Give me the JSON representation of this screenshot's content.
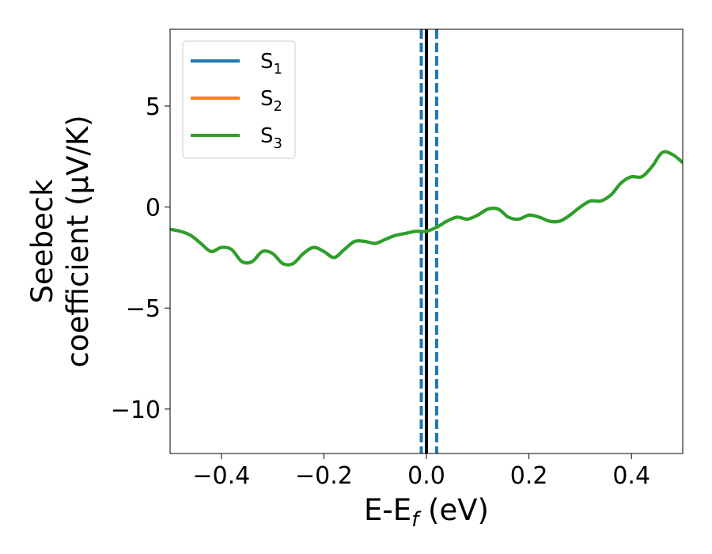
{
  "chart_data": {
    "type": "line",
    "xlabel": {
      "main": "E-E",
      "sub": "f",
      "unit": " (eV)"
    },
    "ylabel": {
      "line1": "Seebeck",
      "line2": "coefficient  (μV/K)"
    },
    "xlim": [
      -0.5,
      0.5
    ],
    "ylim": [
      -12.2,
      8.8
    ],
    "xticks": [
      -0.4,
      -0.2,
      0.0,
      0.2,
      0.4
    ],
    "xtick_labels": [
      "−0.4",
      "−0.2",
      "0.0",
      "0.2",
      "0.4"
    ],
    "yticks": [
      5,
      0,
      -5,
      -10
    ],
    "ytick_labels": [
      "5",
      "0",
      "−5",
      "−10"
    ],
    "legend_position": "top-left",
    "vertical_lines": [
      {
        "x": 0.0,
        "color": "#000000",
        "style": "solid"
      },
      {
        "x": -0.01,
        "color": "#1f77b4",
        "style": "dashed"
      },
      {
        "x": 0.02,
        "color": "#1f77b4",
        "style": "dashed"
      }
    ],
    "x": [
      -0.5,
      -0.48,
      -0.46,
      -0.44,
      -0.42,
      -0.4,
      -0.38,
      -0.36,
      -0.34,
      -0.32,
      -0.3,
      -0.28,
      -0.26,
      -0.24,
      -0.22,
      -0.2,
      -0.18,
      -0.16,
      -0.14,
      -0.12,
      -0.1,
      -0.08,
      -0.06,
      -0.04,
      -0.02,
      0.0,
      0.02,
      0.04,
      0.06,
      0.08,
      0.1,
      0.12,
      0.14,
      0.16,
      0.18,
      0.2,
      0.22,
      0.24,
      0.26,
      0.28,
      0.3,
      0.32,
      0.34,
      0.36,
      0.38,
      0.4,
      0.42,
      0.44,
      0.46,
      0.48,
      0.5
    ],
    "series": [
      {
        "name": "S",
        "sub": "1",
        "color": "#1f77b4",
        "values": [
          -1.1,
          -1.2,
          -1.4,
          -1.8,
          -2.2,
          -2.0,
          -2.1,
          -2.7,
          -2.7,
          -2.2,
          -2.3,
          -2.8,
          -2.8,
          -2.3,
          -2.0,
          -2.2,
          -2.5,
          -2.1,
          -1.7,
          -1.7,
          -1.8,
          -1.6,
          -1.4,
          -1.3,
          -1.2,
          -1.2,
          -1.0,
          -0.7,
          -0.5,
          -0.6,
          -0.4,
          -0.1,
          -0.1,
          -0.5,
          -0.6,
          -0.4,
          -0.5,
          -0.7,
          -0.7,
          -0.4,
          0.0,
          0.3,
          0.3,
          0.6,
          1.2,
          1.5,
          1.5,
          2.0,
          2.7,
          2.6,
          2.2
        ]
      },
      {
        "name": "S",
        "sub": "2",
        "color": "#ff7f0e",
        "values": [
          -1.1,
          -1.2,
          -1.4,
          -1.8,
          -2.2,
          -2.0,
          -2.1,
          -2.7,
          -2.7,
          -2.2,
          -2.3,
          -2.8,
          -2.8,
          -2.3,
          -2.0,
          -2.2,
          -2.5,
          -2.1,
          -1.7,
          -1.7,
          -1.8,
          -1.6,
          -1.4,
          -1.3,
          -1.2,
          -1.2,
          -1.0,
          -0.7,
          -0.5,
          -0.6,
          -0.4,
          -0.1,
          -0.1,
          -0.5,
          -0.6,
          -0.4,
          -0.5,
          -0.7,
          -0.7,
          -0.4,
          0.0,
          0.3,
          0.3,
          0.6,
          1.2,
          1.5,
          1.5,
          2.0,
          2.7,
          2.6,
          2.2
        ]
      },
      {
        "name": "S",
        "sub": "3",
        "color": "#2ca02c",
        "values": [
          -1.1,
          -1.2,
          -1.4,
          -1.8,
          -2.2,
          -2.0,
          -2.1,
          -2.7,
          -2.7,
          -2.2,
          -2.3,
          -2.8,
          -2.8,
          -2.3,
          -2.0,
          -2.2,
          -2.5,
          -2.1,
          -1.7,
          -1.7,
          -1.8,
          -1.6,
          -1.4,
          -1.3,
          -1.2,
          -1.2,
          -1.0,
          -0.7,
          -0.5,
          -0.6,
          -0.4,
          -0.1,
          -0.1,
          -0.5,
          -0.6,
          -0.4,
          -0.5,
          -0.7,
          -0.7,
          -0.4,
          0.0,
          0.3,
          0.3,
          0.6,
          1.2,
          1.5,
          1.5,
          2.0,
          2.7,
          2.6,
          2.2
        ]
      }
    ]
  }
}
